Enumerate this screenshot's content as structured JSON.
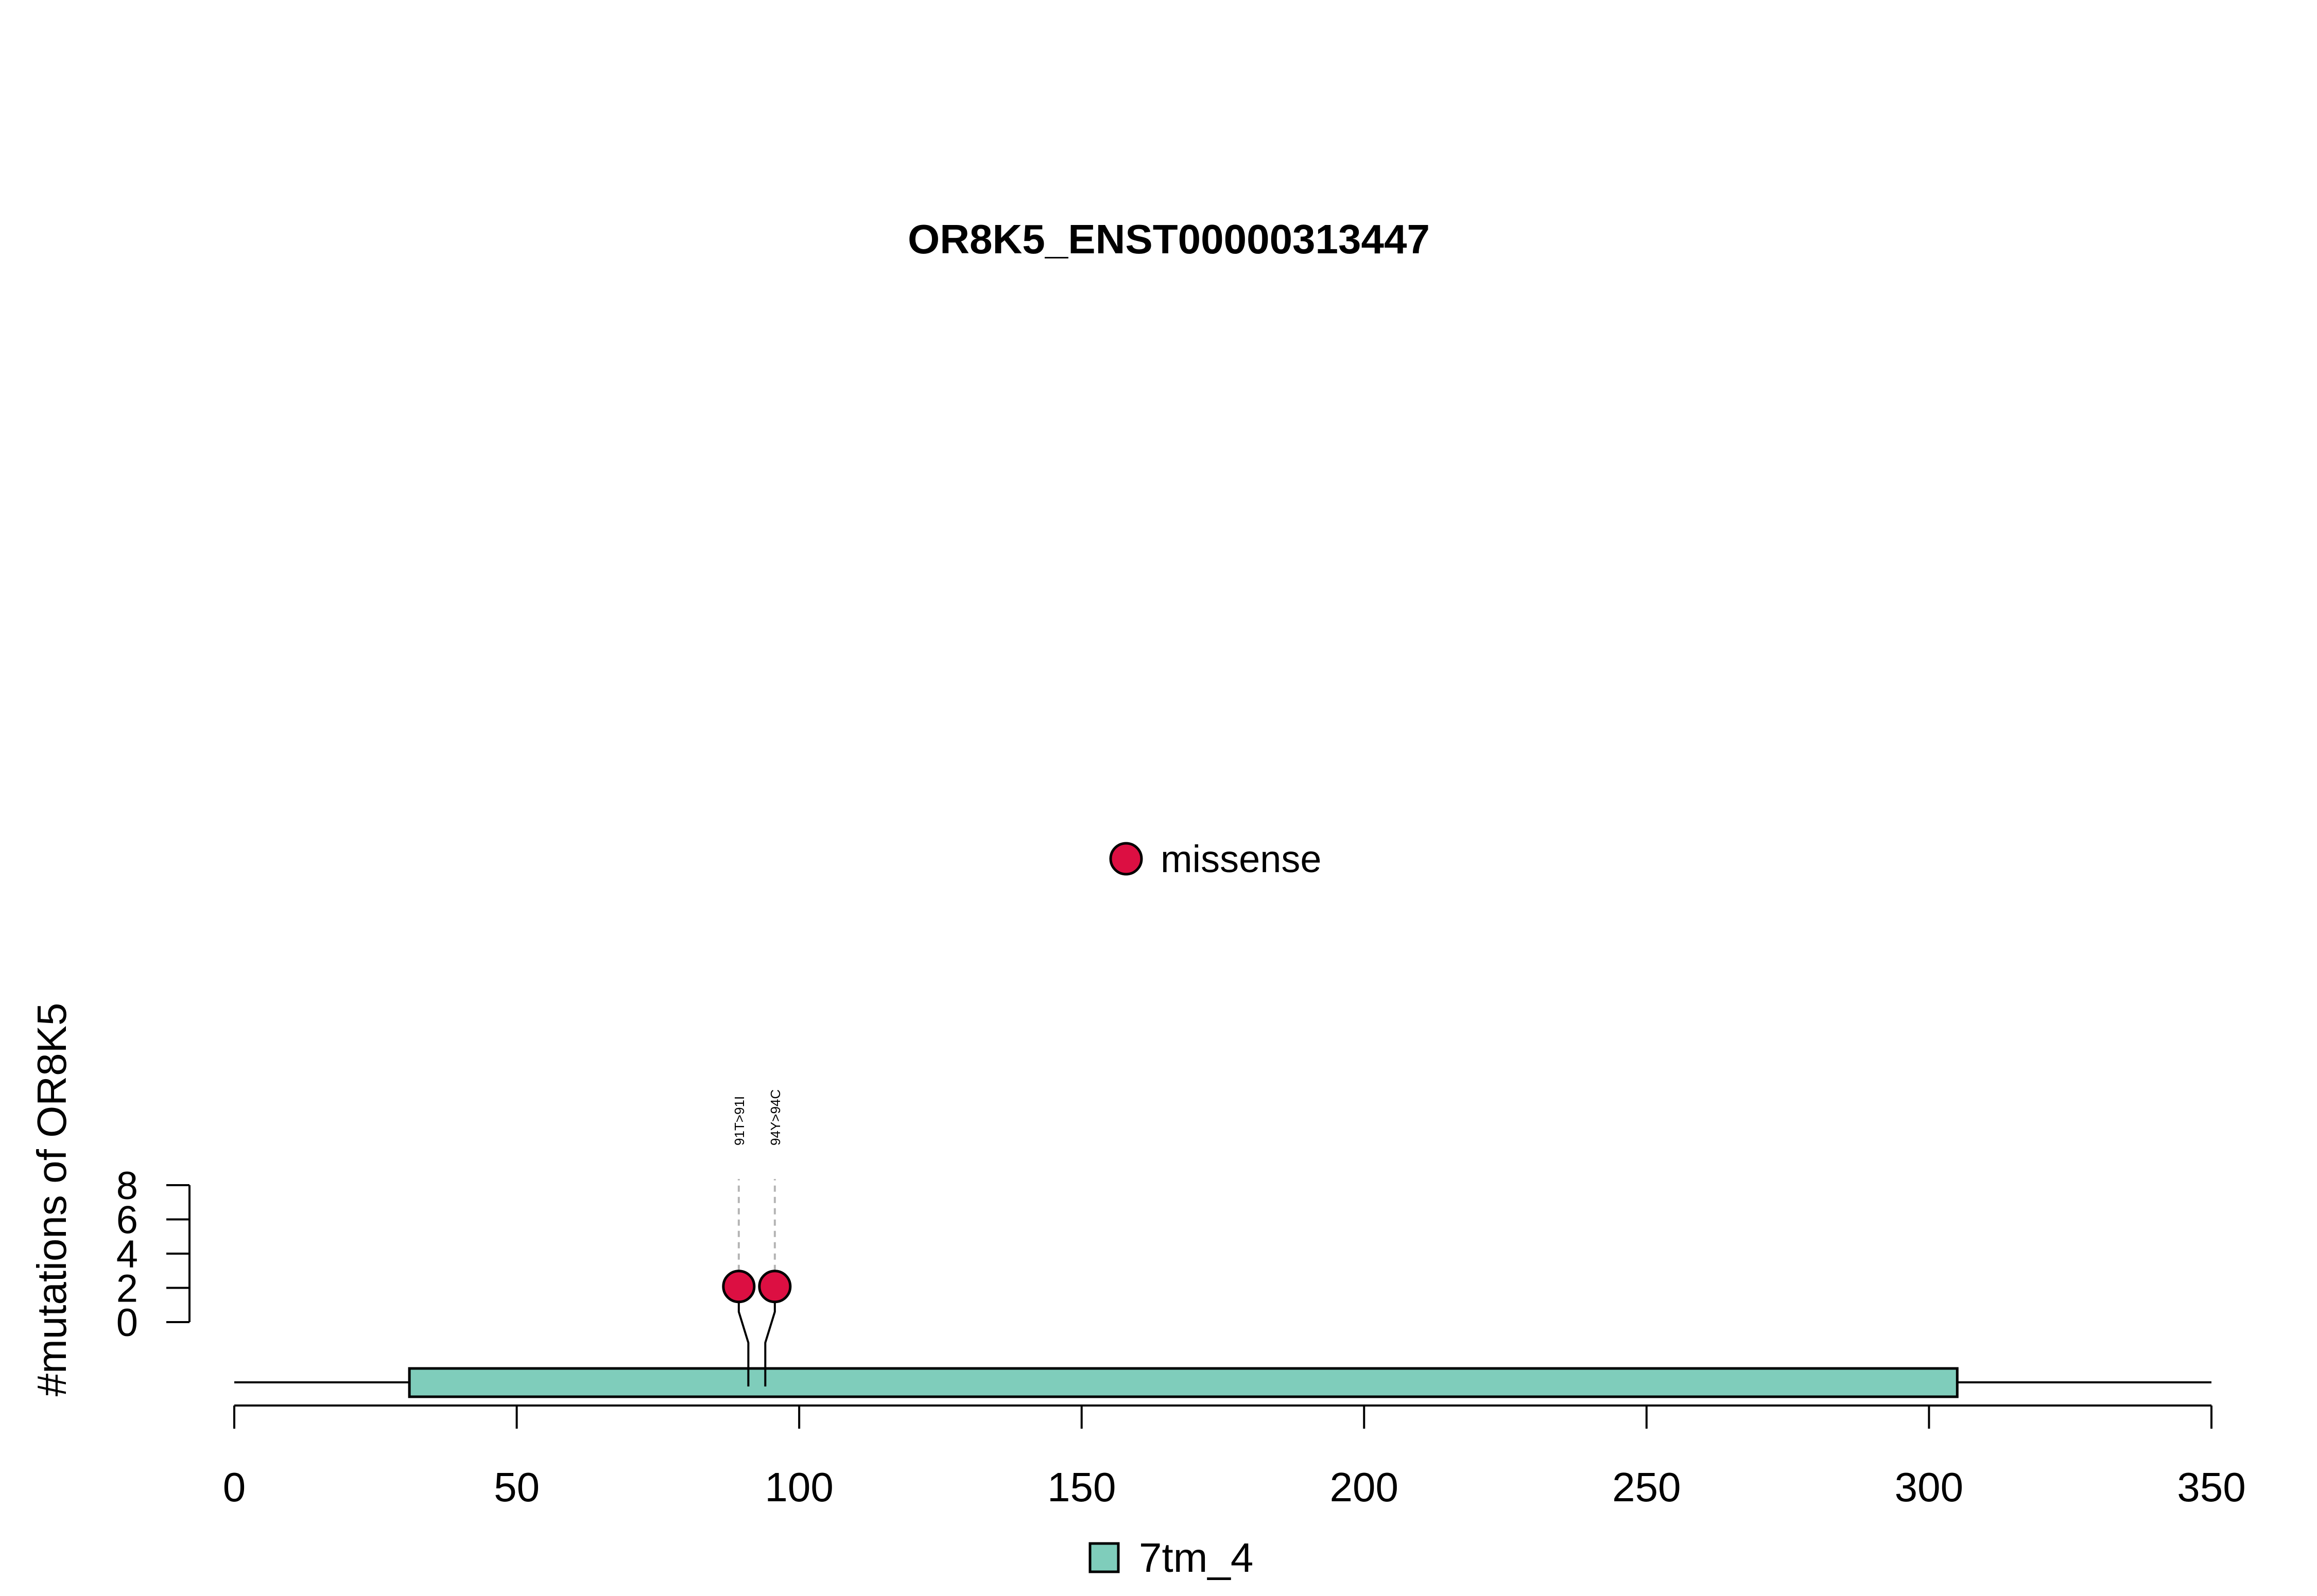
{
  "chart_data": {
    "type": "lollipop",
    "title": "OR8K5_ENST00000313447",
    "ylabel": "#mutations of OR8K5",
    "xlabel": "",
    "xlim": [
      0,
      350
    ],
    "x_ticks": [
      0,
      50,
      100,
      150,
      200,
      250,
      300,
      350
    ],
    "x_tick_labels": [
      "0",
      "50",
      "100",
      "150",
      "200",
      "250",
      "300",
      "350"
    ],
    "ylim": [
      0,
      8
    ],
    "y_ticks": [
      0,
      2,
      4,
      6,
      8
    ],
    "y_tick_labels": [
      "0",
      "2",
      "4",
      "6",
      "8"
    ],
    "protein_length": 350,
    "domains": [
      {
        "name": "7tm_4",
        "start": 31,
        "end": 305,
        "color": "#7fcdbb"
      }
    ],
    "mutations": [
      {
        "label": "91T>91I",
        "position": 91,
        "count": 1,
        "type": "missense"
      },
      {
        "label": "94Y>94C",
        "position": 94,
        "count": 1,
        "type": "missense"
      }
    ],
    "mutation_types": [
      {
        "name": "missense",
        "color": "#dc0f42"
      }
    ],
    "legend_domains": [
      {
        "name": "7tm_4",
        "color": "#7fcdbb"
      }
    ]
  }
}
